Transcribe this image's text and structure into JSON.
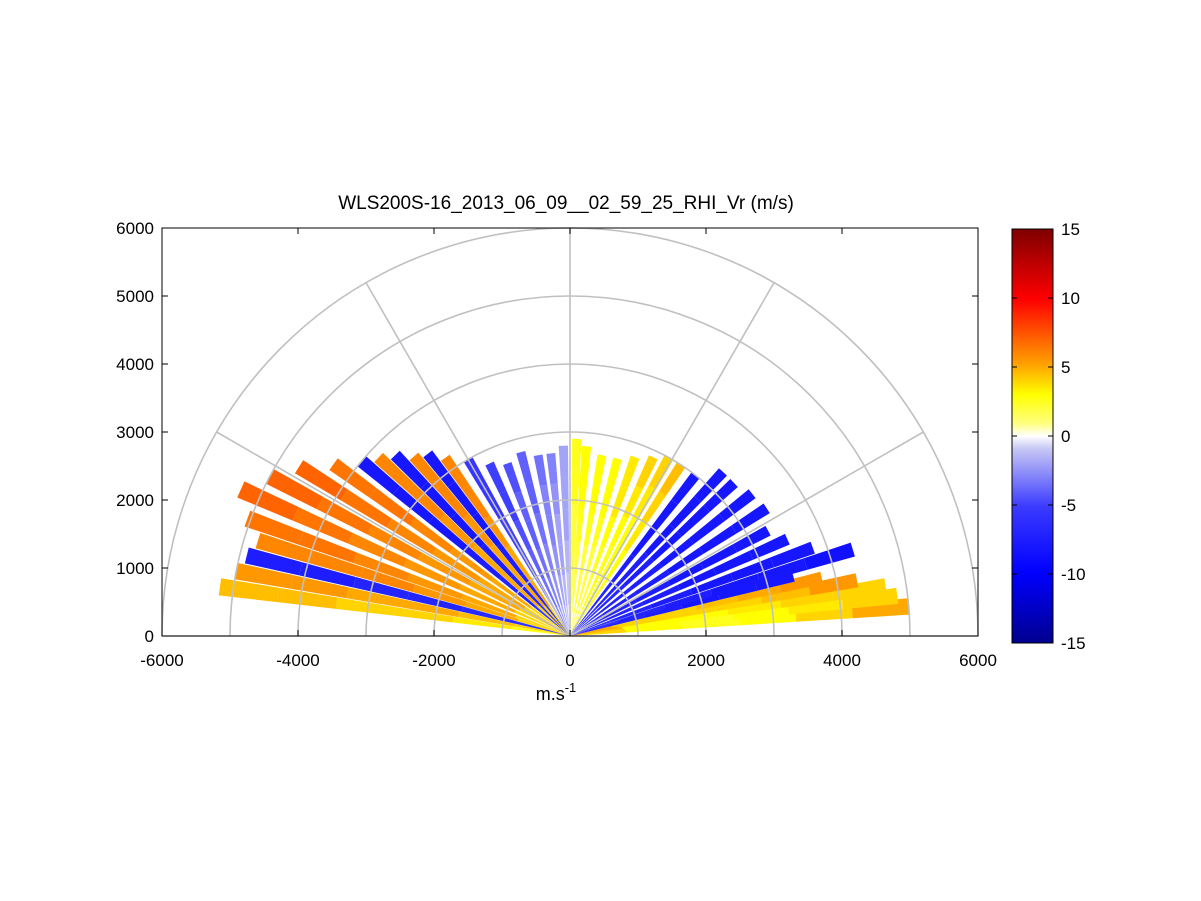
{
  "chart_data": {
    "type": "heatmap",
    "subtype": "polar-rhi-scan",
    "title": "WLS200S-16_2013_06_09__02_59_25_RHI_Vr (m/s)",
    "xlabel": "m.s",
    "xlabel_superscript": "-1",
    "ylabel": "",
    "xlim": [
      -6000,
      6000
    ],
    "ylim": [
      0,
      6000
    ],
    "xticks": [
      -6000,
      -4000,
      -2000,
      0,
      2000,
      4000,
      6000
    ],
    "yticks": [
      0,
      1000,
      2000,
      3000,
      4000,
      5000,
      6000
    ],
    "polar_grid": {
      "range_rings": [
        1000,
        2000,
        3000,
        4000,
        5000,
        6000
      ],
      "spokes_deg": [
        0,
        30,
        60,
        90,
        120,
        150,
        180
      ]
    },
    "colorbar": {
      "min": -15,
      "max": 15,
      "ticks": [
        -15,
        -10,
        -5,
        0,
        5,
        10,
        15
      ],
      "colormap": "blue-white-yellow-red"
    },
    "beams": [
      {
        "elev_deg": 5,
        "range": [
          0,
          5000
        ],
        "vr": [
          4,
          3,
          2.5,
          3,
          4,
          5
        ]
      },
      {
        "elev_deg": 7,
        "range": [
          0,
          4850
        ],
        "vr": [
          4,
          3,
          2.5,
          3,
          3.5,
          4
        ]
      },
      {
        "elev_deg": 9,
        "range": [
          0,
          4700
        ],
        "vr": [
          4.5,
          3,
          3,
          3.5,
          4,
          4
        ]
      },
      {
        "elev_deg": 11,
        "range": [
          0,
          4300
        ],
        "vr": [
          5,
          4,
          4,
          4,
          4.5,
          5.5
        ]
      },
      {
        "elev_deg": 13,
        "range": [
          0,
          3800
        ],
        "vr": [
          5,
          4,
          4,
          4.5,
          5,
          5.5
        ]
      },
      {
        "elev_deg": 15,
        "range": [
          0,
          3400
        ],
        "vr": [
          -6,
          -7,
          -7.5,
          -8,
          -8,
          -8
        ]
      },
      {
        "elev_deg": 17,
        "range": [
          0,
          4350
        ],
        "vr": [
          -6,
          -7,
          -7.5,
          -8,
          -8,
          -8.5
        ]
      },
      {
        "elev_deg": 20,
        "range": [
          0,
          3800
        ],
        "vr": [
          -6,
          -7,
          -7.5,
          -8,
          -8,
          -8
        ]
      },
      {
        "elev_deg": 24,
        "range": [
          0,
          3500
        ],
        "vr": [
          -6,
          -7,
          -7.5,
          -8,
          -8,
          -8
        ]
      },
      {
        "elev_deg": 28,
        "range": [
          0,
          3300
        ],
        "vr": [
          -6,
          -7,
          -7.5,
          -8,
          -8,
          -8
        ]
      },
      {
        "elev_deg": 33,
        "range": [
          0,
          3450
        ],
        "vr": [
          -6,
          -7,
          -7.5,
          -8,
          -8,
          -8
        ]
      },
      {
        "elev_deg": 38,
        "range": [
          0,
          3400
        ],
        "vr": [
          -6,
          -7,
          -7.5,
          -8,
          -8,
          -8
        ]
      },
      {
        "elev_deg": 43,
        "range": [
          0,
          3300
        ],
        "vr": [
          -6,
          -7,
          -7.5,
          -8,
          -8,
          -8
        ]
      },
      {
        "elev_deg": 47,
        "range": [
          0,
          3300
        ],
        "vr": [
          -6,
          -7,
          -7.5,
          -8,
          -8,
          -8
        ]
      },
      {
        "elev_deg": 52,
        "range": [
          0,
          3000
        ],
        "vr": [
          -6,
          -7,
          -7.5,
          -8,
          -8,
          -8
        ]
      },
      {
        "elev_deg": 57,
        "range": [
          0,
          3000
        ],
        "vr": [
          2,
          2.5,
          3,
          3.5,
          4,
          4.5
        ]
      },
      {
        "elev_deg": 61,
        "range": [
          0,
          3000
        ],
        "vr": [
          2,
          2.5,
          3,
          3,
          3.5,
          4
        ]
      },
      {
        "elev_deg": 65,
        "range": [
          0,
          2900
        ],
        "vr": [
          2,
          2.5,
          2.5,
          3,
          3.5,
          4
        ]
      },
      {
        "elev_deg": 70,
        "range": [
          0,
          2800
        ],
        "vr": [
          1.5,
          2,
          2.5,
          3,
          3.5,
          3.5
        ]
      },
      {
        "elev_deg": 75,
        "range": [
          0,
          2700
        ],
        "vr": [
          1.5,
          2,
          2,
          2.5,
          3,
          3
        ]
      },
      {
        "elev_deg": 80,
        "range": [
          0,
          2700
        ],
        "vr": [
          1.5,
          2,
          2,
          2.5,
          3,
          3
        ]
      },
      {
        "elev_deg": 85,
        "range": [
          0,
          2800
        ],
        "vr": [
          1,
          1.5,
          2,
          2.5,
          3,
          3
        ]
      },
      {
        "elev_deg": 88,
        "range": [
          0,
          2900
        ],
        "vr": [
          1,
          1.5,
          2,
          2,
          2.5,
          2.5
        ]
      },
      {
        "elev_deg": 92,
        "range": [
          0,
          2800
        ],
        "vr": [
          -0.5,
          -1,
          -1.5,
          -2,
          -2,
          -2
        ]
      },
      {
        "elev_deg": 96,
        "range": [
          0,
          2700
        ],
        "vr": [
          -1,
          -1.5,
          -2,
          -2,
          -2.5,
          -3
        ]
      },
      {
        "elev_deg": 100,
        "range": [
          0,
          2700
        ],
        "vr": [
          -1.5,
          -2,
          -2.5,
          -3,
          -3,
          -3.5
        ]
      },
      {
        "elev_deg": 105,
        "range": [
          0,
          2800
        ],
        "vr": [
          -2,
          -2.5,
          -3,
          -3.5,
          -4,
          -4
        ]
      },
      {
        "elev_deg": 110,
        "range": [
          0,
          2700
        ],
        "vr": [
          -2.5,
          -3,
          -3.5,
          -4,
          -4,
          -4.5
        ]
      },
      {
        "elev_deg": 115,
        "range": [
          0,
          2800
        ],
        "vr": [
          -3,
          -3.5,
          -4,
          -4.5,
          -5,
          -5
        ]
      },
      {
        "elev_deg": 120,
        "range": [
          0,
          3000
        ],
        "vr": [
          -3.5,
          -4,
          -4.5,
          -5,
          -5.5,
          -5.5
        ]
      },
      {
        "elev_deg": 125,
        "range": [
          0,
          3200
        ],
        "vr": [
          4,
          5,
          5,
          5.5,
          6,
          6
        ]
      },
      {
        "elev_deg": 128,
        "range": [
          0,
          3400
        ],
        "vr": [
          -6,
          -7,
          -7.5,
          -8,
          -8,
          -8
        ]
      },
      {
        "elev_deg": 131,
        "range": [
          0,
          3500
        ],
        "vr": [
          4,
          5,
          5,
          5.5,
          6,
          6
        ]
      },
      {
        "elev_deg": 134,
        "range": [
          0,
          3700
        ],
        "vr": [
          -6,
          -7,
          -7.5,
          -8,
          -8,
          -8
        ]
      },
      {
        "elev_deg": 137,
        "range": [
          0,
          3850
        ],
        "vr": [
          4,
          5,
          5,
          5.5,
          6,
          6
        ]
      },
      {
        "elev_deg": 140,
        "range": [
          0,
          4000
        ],
        "vr": [
          -6,
          -7,
          -7.5,
          -8,
          -8,
          -8
        ]
      },
      {
        "elev_deg": 144,
        "range": [
          0,
          4300
        ],
        "vr": [
          4,
          5,
          5.5,
          6,
          6.5,
          6.5
        ]
      },
      {
        "elev_deg": 148,
        "range": [
          0,
          4700
        ],
        "vr": [
          4,
          5,
          5.5,
          6,
          6.5,
          7
        ]
      },
      {
        "elev_deg": 152,
        "range": [
          0,
          5000
        ],
        "vr": [
          4,
          5,
          5.5,
          6,
          6.5,
          7
        ]
      },
      {
        "elev_deg": 156,
        "range": [
          0,
          5300
        ],
        "vr": [
          4,
          5,
          5.5,
          6,
          6.5,
          7
        ]
      },
      {
        "elev_deg": 160,
        "range": [
          0,
          5050
        ],
        "vr": [
          4,
          5,
          5.5,
          6,
          6.5,
          6.5
        ]
      },
      {
        "elev_deg": 163,
        "range": [
          0,
          4800
        ],
        "vr": [
          4,
          5,
          5.5,
          6,
          6,
          6
        ]
      },
      {
        "elev_deg": 166,
        "range": [
          0,
          4900
        ],
        "vr": [
          -6,
          -6.5,
          -7,
          -7,
          -7.5,
          -7.5
        ]
      },
      {
        "elev_deg": 169,
        "range": [
          0,
          5000
        ],
        "vr": [
          4,
          4.5,
          5,
          5,
          5.5,
          5.5
        ]
      },
      {
        "elev_deg": 172,
        "range": [
          0,
          5200
        ],
        "vr": [
          3,
          3.5,
          4,
          4,
          4.5,
          4.5
        ]
      }
    ]
  }
}
